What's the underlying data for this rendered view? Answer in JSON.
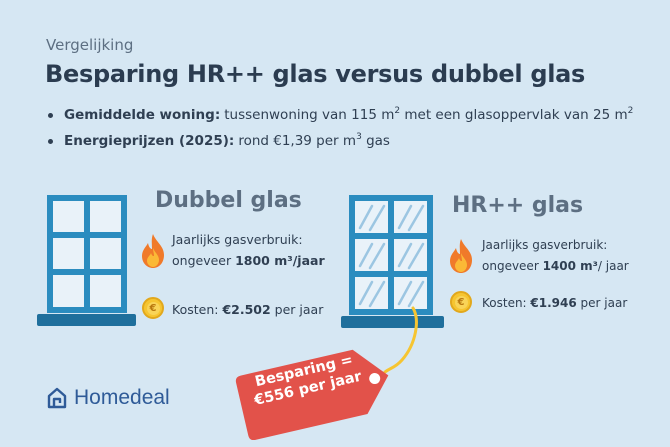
{
  "header": {
    "eyebrow": "Vergelijking",
    "title": "Besparing HR++ glas versus dubbel glas"
  },
  "bullets": [
    {
      "label": "Gemiddelde woning:",
      "text": "tussenwoning van 115 m",
      "sup": "2",
      "text2": " met een glasoppervlak van 25 m",
      "sup2": "2"
    },
    {
      "label": "Energieprijzen (2025):",
      "text": "rond €1,39 per m",
      "sup": "3",
      "text2": " gas"
    }
  ],
  "left": {
    "heading": "Dubbel glas",
    "usage_label": "Jaarlijks gasverbruik:",
    "usage_prefix": "ongeveer ",
    "usage_value": "1800 m³/jaar",
    "cost_prefix": "Kosten: ",
    "cost_value": "€2.502",
    "cost_suffix": " per jaar"
  },
  "right": {
    "heading": "HR++ glas",
    "usage_label": "Jaarlijks gasverbruik:",
    "usage_prefix": "ongeveer ",
    "usage_value": "1400 m³",
    "usage_suffix": "/ jaar",
    "cost_prefix": "Kosten: ",
    "cost_value": "€1.946",
    "cost_suffix": " per jaar"
  },
  "savings_tag": {
    "line1": "Besparing =",
    "line2": "€556 per jaar"
  },
  "brand": {
    "name": "Homedeal"
  },
  "icons": {
    "window_plain": "window-icon",
    "window_glazed": "window-glazed-icon",
    "flame": "flame-icon",
    "coin": "euro-coin-icon",
    "tag": "price-tag-icon",
    "logo": "homedeal-logo-icon"
  },
  "colors": {
    "background": "#d6e7f3",
    "window_frame": "#2b8cbf",
    "window_sill": "#1f6f9c",
    "tag": "#e2524a",
    "coin": "#f6c531",
    "flame": "#f07a2a",
    "brand": "#2f5b98"
  }
}
